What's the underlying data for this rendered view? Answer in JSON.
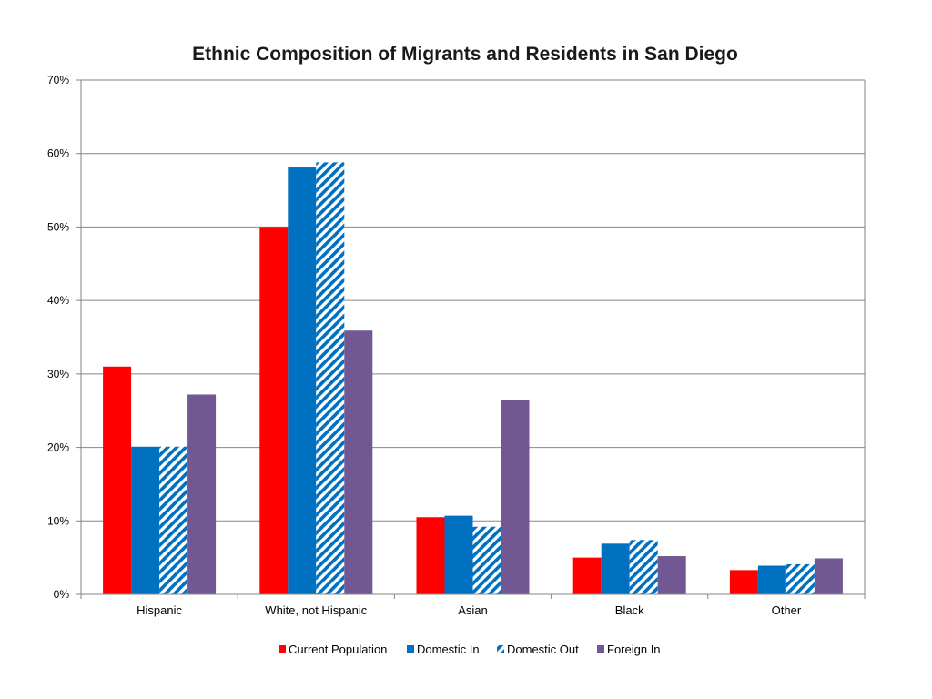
{
  "chart_data": {
    "type": "bar",
    "title": "Ethnic Composition of Migrants and Residents in San Diego",
    "categories": [
      "Hispanic",
      "White, not Hispanic",
      "Asian",
      "Black",
      "Other"
    ],
    "ylim": [
      0,
      70
    ],
    "yticks": [
      0,
      10,
      20,
      30,
      40,
      50,
      60,
      70
    ],
    "ytick_labels": [
      "0%",
      "10%",
      "20%",
      "30%",
      "40%",
      "50%",
      "60%",
      "70%"
    ],
    "grid": true,
    "legend_position": "bottom",
    "series": [
      {
        "name": "Current Population",
        "color": "#ff0000",
        "pattern": "solid",
        "values": [
          31.0,
          50.0,
          10.5,
          5.0,
          3.3
        ]
      },
      {
        "name": "Domestic In",
        "color": "#0070c0",
        "pattern": "solid",
        "values": [
          20.1,
          58.1,
          10.7,
          6.9,
          3.9
        ]
      },
      {
        "name": "Domestic Out",
        "color": "#0070c0",
        "pattern": "diagonal-stripes",
        "values": [
          20.1,
          58.8,
          9.2,
          7.4,
          4.1
        ]
      },
      {
        "name": "Foreign In",
        "color": "#725892",
        "pattern": "solid",
        "values": [
          27.2,
          35.9,
          26.5,
          5.2,
          4.9
        ]
      }
    ]
  }
}
